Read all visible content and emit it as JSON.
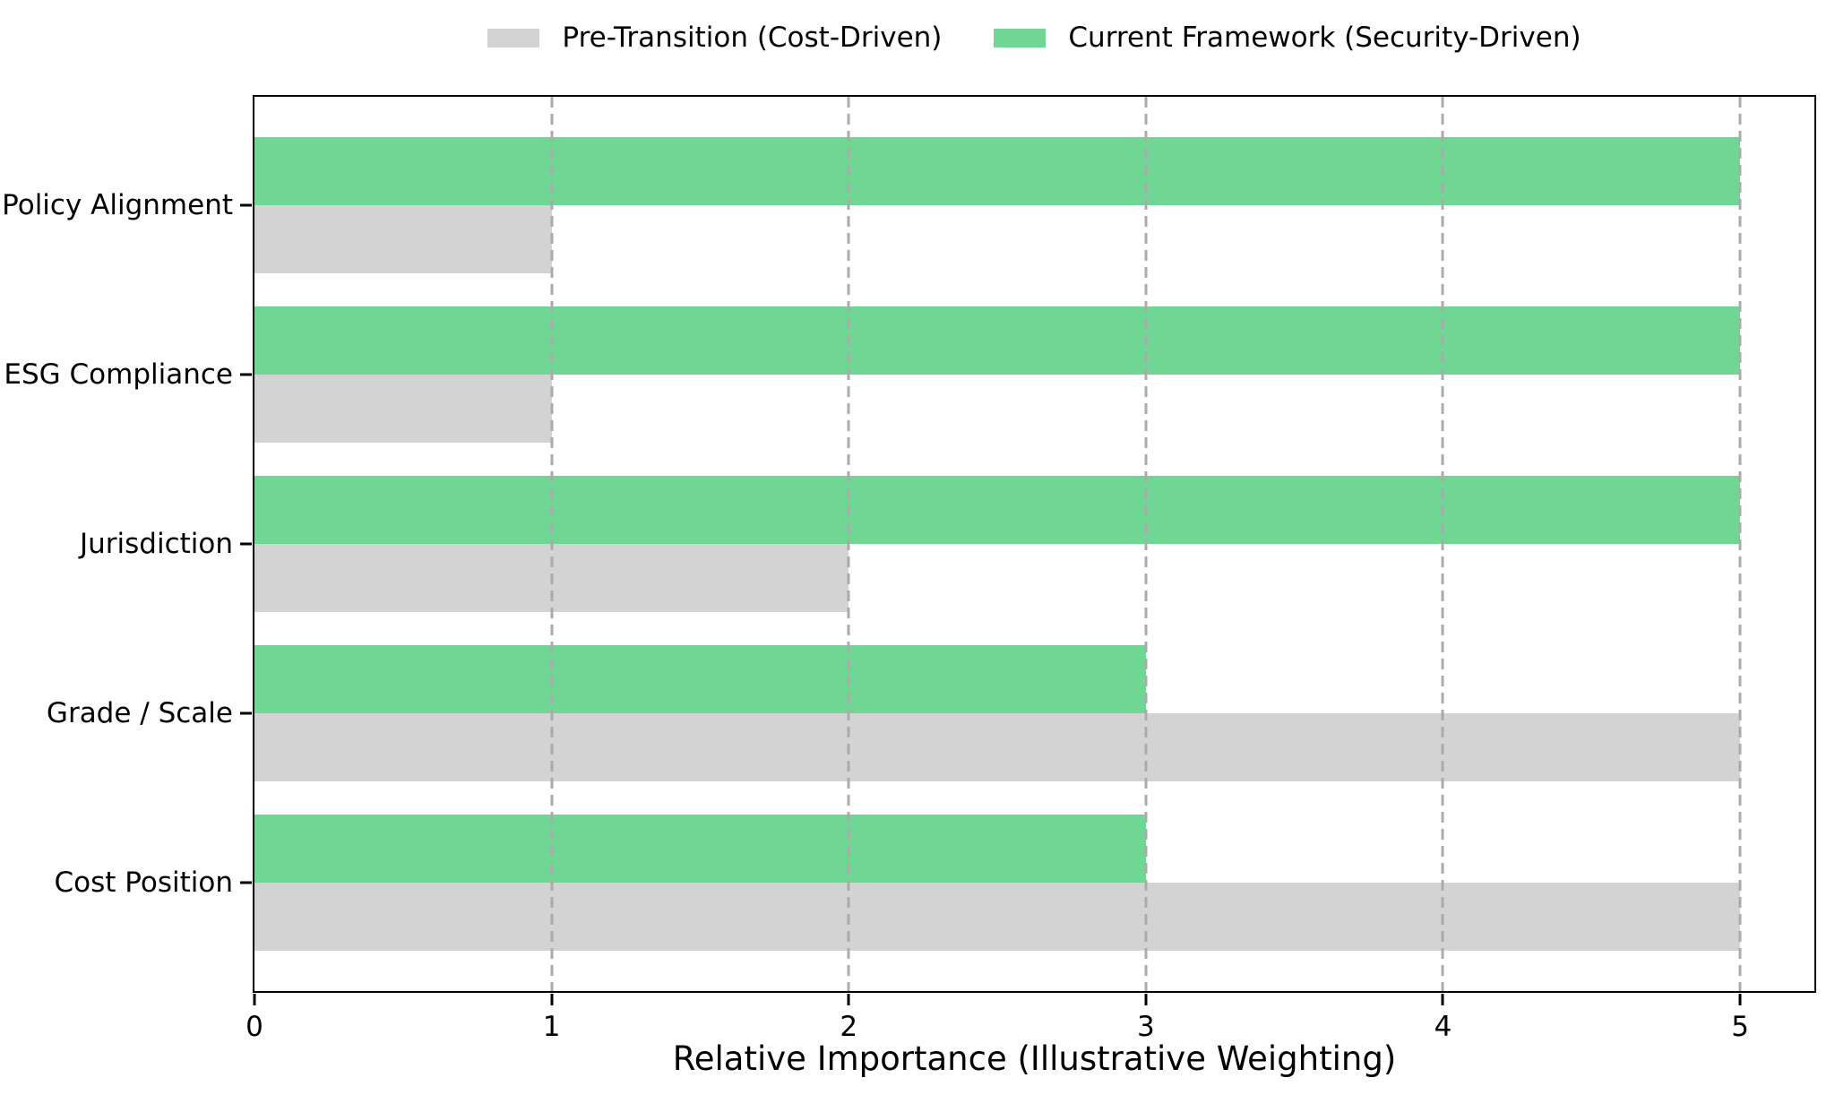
{
  "chart_data": {
    "type": "bar",
    "orientation": "horizontal",
    "title": "",
    "xlabel": "Relative Importance (Illustrative Weighting)",
    "ylabel": "",
    "categories": [
      "Policy Alignment",
      "ESG Compliance",
      "Jurisdiction",
      "Grade / Scale",
      "Cost Position"
    ],
    "series": [
      {
        "name": "Current Framework (Security-Driven)",
        "color": "#6fd693",
        "values": [
          5,
          5,
          5,
          3,
          3
        ],
        "group_position": "top"
      },
      {
        "name": "Pre-Transition (Cost-Driven)",
        "color": "#d3d3d3",
        "values": [
          1,
          1,
          2,
          5,
          5
        ],
        "group_position": "bottom"
      }
    ],
    "legend": {
      "position": "top-center",
      "entries": [
        {
          "label": "Pre-Transition (Cost-Driven)",
          "color": "#d3d3d3"
        },
        {
          "label": "Current Framework (Security-Driven)",
          "color": "#6fd693"
        }
      ]
    },
    "xlim": [
      0,
      5.25
    ],
    "xticks": [
      "0",
      "1",
      "2",
      "3",
      "4",
      "5"
    ],
    "grid": {
      "axis": "x",
      "style": "dashed",
      "color": "#ababab",
      "drawn_above_bars": true
    },
    "axis_color": "#000000",
    "background_color": "#ffffff"
  }
}
